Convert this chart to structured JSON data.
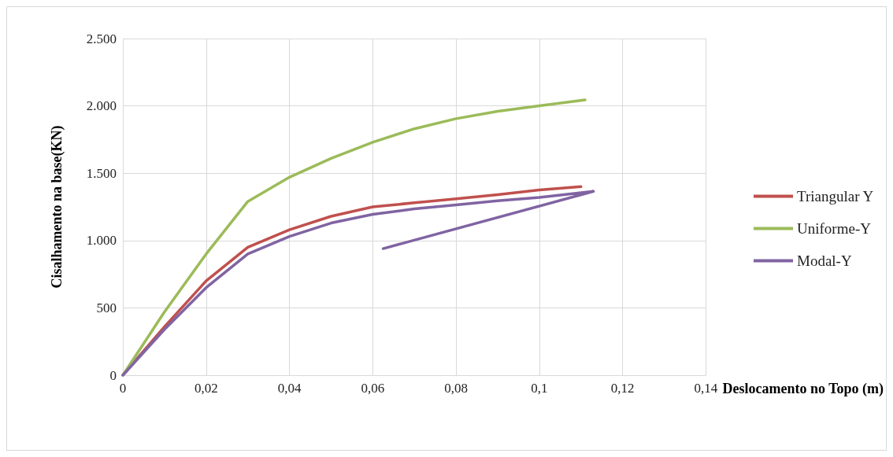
{
  "chart_data": {
    "type": "line",
    "xlabel": "Deslocamento no Topo (m)",
    "ylabel": "Cisalhamento na base(KN)",
    "xlim": [
      0,
      0.14
    ],
    "ylim": [
      0,
      2500
    ],
    "xticks": [
      0,
      {
        "value": 0.02,
        "label": "0,02"
      },
      {
        "value": 0.04,
        "label": "0,04"
      },
      {
        "value": 0.06,
        "label": "0,06"
      },
      {
        "value": 0.08,
        "label": "0,08"
      },
      {
        "value": 0.1,
        "label": "0,1"
      },
      {
        "value": 0.12,
        "label": "0,12"
      },
      {
        "value": 0.14,
        "label": "0,14"
      }
    ],
    "yticks": [
      0,
      500,
      {
        "value": 1000,
        "label": "1.000"
      },
      {
        "value": 1500,
        "label": "1.500"
      },
      {
        "value": 2000,
        "label": "2.000"
      },
      {
        "value": 2500,
        "label": "2.500"
      }
    ],
    "grid": true,
    "legend": "right",
    "marker": "none",
    "line_style": "solid",
    "series": [
      {
        "name": "Triangular Y",
        "color": "#c0504d",
        "x": [
          0,
          0.01,
          0.02,
          0.03,
          0.04,
          0.05,
          0.06,
          0.07,
          0.08,
          0.09,
          0.1,
          0.11
        ],
        "values": [
          0,
          360,
          700,
          950,
          1080,
          1180,
          1250,
          1280,
          1310,
          1340,
          1375,
          1400
        ]
      },
      {
        "name": "Uniforme-Y",
        "color": "#9bbb59",
        "x": [
          0,
          0.01,
          0.02,
          0.03,
          0.04,
          0.05,
          0.06,
          0.07,
          0.08,
          0.09,
          0.1,
          0.111
        ],
        "values": [
          0,
          470,
          900,
          1290,
          1470,
          1610,
          1730,
          1830,
          1905,
          1960,
          2000,
          2045
        ]
      },
      {
        "name": "Modal-Y",
        "color": "#8064a2",
        "x": [
          0,
          0.01,
          0.02,
          0.03,
          0.04,
          0.05,
          0.06,
          0.07,
          0.08,
          0.09,
          0.1,
          0.113,
          0.0625
        ],
        "values": [
          0,
          340,
          650,
          900,
          1030,
          1130,
          1195,
          1235,
          1265,
          1295,
          1320,
          1365,
          940
        ]
      }
    ]
  }
}
